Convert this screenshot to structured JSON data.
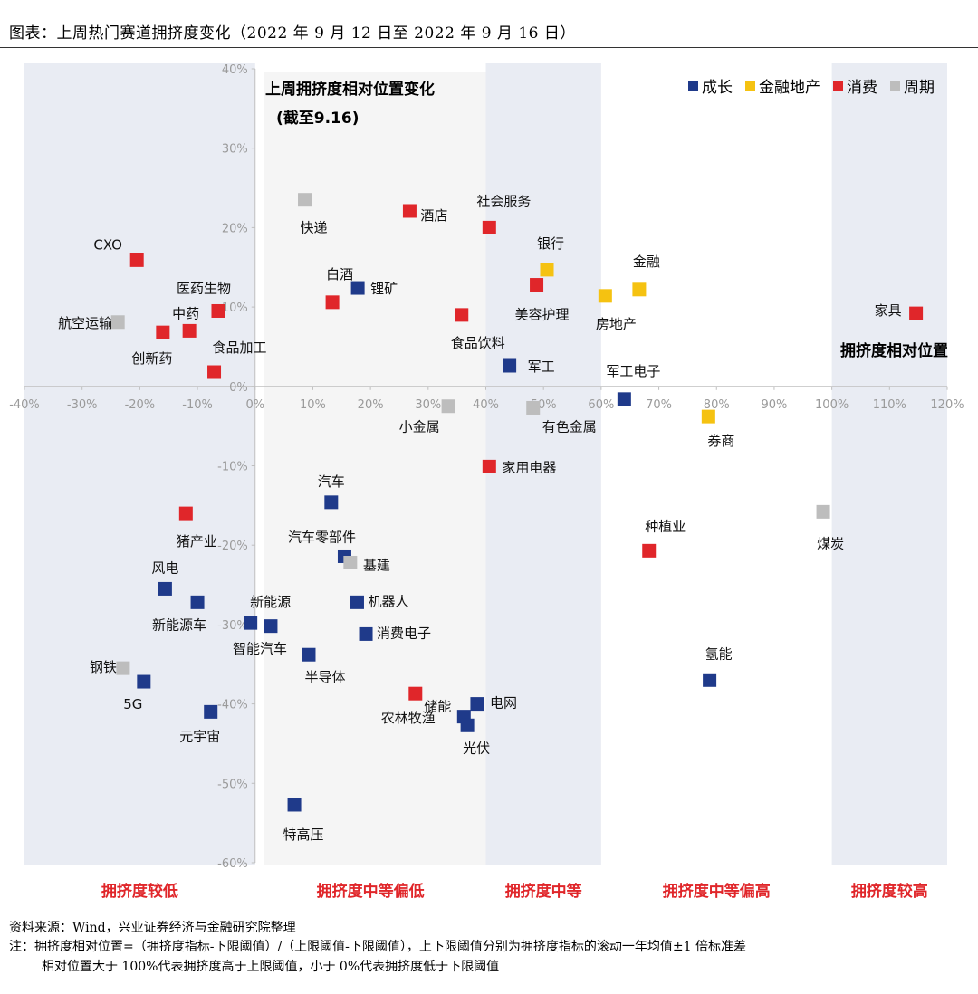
{
  "header": {
    "title": "图表：上周热门赛道拥挤度变化（2022 年 9 月 12 日至 2022 年 9 月 16 日）"
  },
  "chart_data": {
    "type": "scatter",
    "xlim": [
      -0.4,
      1.2
    ],
    "ylim": [
      -0.6,
      0.4
    ],
    "x_ticks": [
      -0.4,
      -0.3,
      -0.2,
      -0.1,
      0,
      0.1,
      0.2,
      0.3,
      0.4,
      0.5,
      0.6,
      0.7,
      0.8,
      0.9,
      1.0,
      1.1,
      1.2
    ],
    "x_tick_labels": [
      "-40%",
      "-30%",
      "-20%",
      "-10%",
      "0%",
      "10%",
      "20%",
      "30%",
      "40%",
      "50%",
      "60%",
      "70%",
      "80%",
      "90%",
      "100%",
      "110%",
      "120%"
    ],
    "y_ticks": [
      -0.6,
      -0.5,
      -0.4,
      -0.3,
      -0.2,
      -0.1,
      0,
      0.1,
      0.2,
      0.3,
      0.4
    ],
    "y_tick_labels": [
      "-60%",
      "-50%",
      "-40%",
      "-30%",
      "-20%",
      "-10%",
      "0%",
      "10%",
      "20%",
      "30%",
      "40%"
    ],
    "y_title_line1": "上周拥挤度相对位置变化",
    "y_title_line2": "(截至9.16)",
    "x_title": "拥挤度相对位置",
    "legend_position": "top-right",
    "colors": {
      "成长": "#1f3a8a",
      "金融地产": "#f5c211",
      "消费": "#e0262a",
      "周期": "#bdbdbd"
    },
    "series": [
      {
        "name": "成长",
        "points": [
          {
            "label": "锂矿",
            "x": 0.178,
            "y": 0.124
          },
          {
            "label": "军工",
            "x": 0.441,
            "y": 0.026
          },
          {
            "label": "军工电子",
            "x": 0.64,
            "y": -0.016
          },
          {
            "label": "汽车",
            "x": 0.132,
            "y": -0.146
          },
          {
            "label": "汽车零部件",
            "x": 0.155,
            "y": -0.214
          },
          {
            "label": "风电",
            "x": -0.156,
            "y": -0.255
          },
          {
            "label": "新能源车",
            "x": -0.1,
            "y": -0.272
          },
          {
            "label": "机器人",
            "x": 0.177,
            "y": -0.272
          },
          {
            "label": "新能源",
            "x": -0.008,
            "y": -0.298
          },
          {
            "label": "智能汽车",
            "x": 0.027,
            "y": -0.302
          },
          {
            "label": "消费电子",
            "x": 0.192,
            "y": -0.312
          },
          {
            "label": "半导体",
            "x": 0.093,
            "y": -0.338
          },
          {
            "label": "5G",
            "x": -0.193,
            "y": -0.372
          },
          {
            "label": "元宇宙",
            "x": -0.077,
            "y": -0.41
          },
          {
            "label": "电网",
            "x": 0.385,
            "y": -0.4
          },
          {
            "label": "储能",
            "x": 0.362,
            "y": -0.416
          },
          {
            "label": "光伏",
            "x": 0.368,
            "y": -0.427
          },
          {
            "label": "氢能",
            "x": 0.788,
            "y": -0.37
          },
          {
            "label": "特高压",
            "x": 0.068,
            "y": -0.527
          }
        ]
      },
      {
        "name": "金融地产",
        "points": [
          {
            "label": "银行",
            "x": 0.506,
            "y": 0.147
          },
          {
            "label": "金融",
            "x": 0.666,
            "y": 0.122
          },
          {
            "label": "房地产",
            "x": 0.607,
            "y": 0.114
          },
          {
            "label": "券商",
            "x": 0.786,
            "y": -0.038
          }
        ]
      },
      {
        "name": "消费",
        "points": [
          {
            "label": "CXO",
            "x": -0.205,
            "y": 0.159
          },
          {
            "label": "医药生物",
            "x": -0.064,
            "y": 0.095
          },
          {
            "label": "中药",
            "x": -0.114,
            "y": 0.07
          },
          {
            "label": "创新药",
            "x": -0.16,
            "y": 0.068
          },
          {
            "label": "食品加工",
            "x": -0.071,
            "y": 0.018
          },
          {
            "label": "白酒",
            "x": 0.134,
            "y": 0.106
          },
          {
            "label": "酒店",
            "x": 0.268,
            "y": 0.221
          },
          {
            "label": "社会服务",
            "x": 0.406,
            "y": 0.2
          },
          {
            "label": "美容护理",
            "x": 0.488,
            "y": 0.128
          },
          {
            "label": "食品饮料",
            "x": 0.358,
            "y": 0.09
          },
          {
            "label": "家具",
            "x": 1.146,
            "y": 0.092
          },
          {
            "label": "家用电器",
            "x": 0.406,
            "y": -0.101
          },
          {
            "label": "猪产业",
            "x": -0.12,
            "y": -0.16
          },
          {
            "label": "种植业",
            "x": 0.683,
            "y": -0.207
          },
          {
            "label": "农林牧渔",
            "x": 0.278,
            "y": -0.387
          }
        ]
      },
      {
        "name": "周期",
        "points": [
          {
            "label": "航空运输",
            "x": -0.238,
            "y": 0.081
          },
          {
            "label": "快递",
            "x": 0.086,
            "y": 0.235
          },
          {
            "label": "小金属",
            "x": 0.335,
            "y": -0.025
          },
          {
            "label": "有色金属",
            "x": 0.482,
            "y": -0.027
          },
          {
            "label": "基建",
            "x": 0.165,
            "y": -0.222
          },
          {
            "label": "钢铁",
            "x": -0.229,
            "y": -0.355
          },
          {
            "label": "煤炭",
            "x": 0.985,
            "y": -0.158
          }
        ]
      }
    ],
    "zones": [
      {
        "label": "拥挤度较低",
        "x_range": [
          -0.4,
          0.0
        ],
        "shaded": true
      },
      {
        "label": "拥挤度中等偏低",
        "x_range": [
          0.0,
          0.4
        ],
        "shaded": false
      },
      {
        "label": "拥挤度中等",
        "x_range": [
          0.4,
          0.6
        ],
        "shaded": true
      },
      {
        "label": "拥挤度中等偏高",
        "x_range": [
          0.6,
          1.0
        ],
        "shaded": false
      },
      {
        "label": "拥挤度较高",
        "x_range": [
          1.0,
          1.2
        ],
        "shaded": true
      }
    ],
    "zone_label_color": "#e0262a",
    "shade_color": "#e9ecf3"
  },
  "footer": {
    "source": "资料来源：Wind，兴业证券经济与金融研究院整理",
    "note_line1": "注：拥挤度相对位置=（拥挤度指标-下限阈值）/（上限阈值-下限阈值），上下限阈值分别为拥挤度指标的滚动一年均值±1 倍标准差",
    "note_line2": "相对位置大于 100%代表拥挤度高于上限阈值，小于 0%代表拥挤度低于下限阈值"
  }
}
